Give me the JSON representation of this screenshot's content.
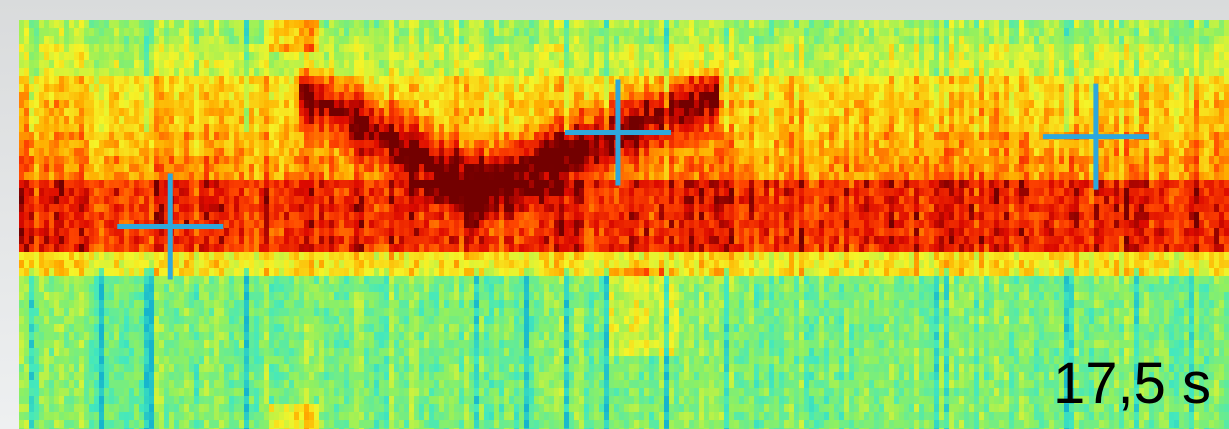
{
  "chart_data": {
    "type": "heatmap",
    "time_label": "17,5 s",
    "grid": false,
    "markers": [
      {
        "name": "marker-1",
        "x": 0.125,
        "y": 0.505
      },
      {
        "name": "marker-2",
        "x": 0.495,
        "y": 0.275
      },
      {
        "name": "marker-3",
        "x": 0.89,
        "y": 0.285
      }
    ],
    "colors": {
      "marker": "#2ea8dc",
      "low": "#5fe9a0",
      "mid": "#f4f12d",
      "high": "#ff4a00",
      "peak": "#7d0000"
    }
  }
}
